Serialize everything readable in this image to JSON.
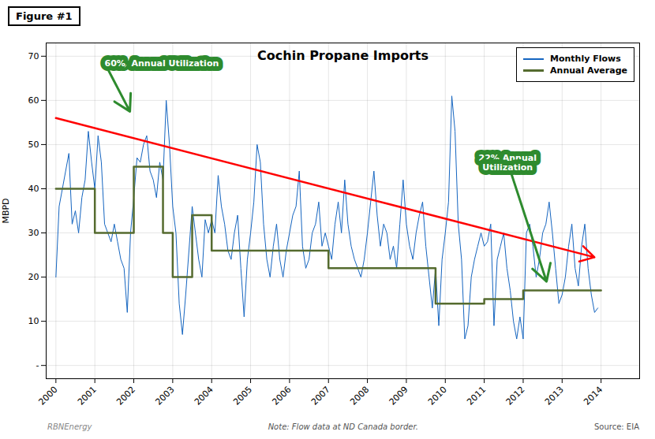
{
  "chart_data": {
    "type": "line",
    "title": "Cochin Propane Imports",
    "ylabel": "MBPD",
    "figure_label": "Figure #1",
    "note": "Note: Flow data at ND Canada border.",
    "source": "Source: EIA",
    "watermark": "RBNEnergy",
    "xlim": [
      1999.75,
      2014.99
    ],
    "xticks": [
      2000,
      2001,
      2002,
      2003,
      2004,
      2005,
      2006,
      2007,
      2008,
      2009,
      2010,
      2011,
      2012,
      2013,
      2014
    ],
    "ylim": [
      -3,
      73
    ],
    "yticks": [
      {
        "value": 0,
        "label": "-"
      },
      10,
      20,
      30,
      40,
      50,
      60,
      70
    ],
    "grid": true,
    "legend": "upper right",
    "series": [
      {
        "name": "Monthly Flows",
        "color": "#1565c0",
        "x": [
          2000.0,
          2000.083,
          2000.167,
          2000.25,
          2000.333,
          2000.417,
          2000.5,
          2000.583,
          2000.667,
          2000.75,
          2000.833,
          2000.917,
          2001.0,
          2001.083,
          2001.167,
          2001.25,
          2001.333,
          2001.417,
          2001.5,
          2001.583,
          2001.667,
          2001.75,
          2001.833,
          2001.917,
          2002.0,
          2002.083,
          2002.167,
          2002.25,
          2002.333,
          2002.417,
          2002.5,
          2002.583,
          2002.667,
          2002.75,
          2002.833,
          2002.917,
          2003.0,
          2003.083,
          2003.167,
          2003.25,
          2003.333,
          2003.417,
          2003.5,
          2003.583,
          2003.667,
          2003.75,
          2003.833,
          2003.917,
          2004.0,
          2004.083,
          2004.167,
          2004.25,
          2004.333,
          2004.417,
          2004.5,
          2004.583,
          2004.667,
          2004.75,
          2004.833,
          2004.917,
          2005.0,
          2005.083,
          2005.167,
          2005.25,
          2005.333,
          2005.417,
          2005.5,
          2005.583,
          2005.667,
          2005.75,
          2005.833,
          2005.917,
          2006.0,
          2006.083,
          2006.167,
          2006.25,
          2006.333,
          2006.417,
          2006.5,
          2006.583,
          2006.667,
          2006.75,
          2006.833,
          2006.917,
          2007.0,
          2007.083,
          2007.167,
          2007.25,
          2007.333,
          2007.417,
          2007.5,
          2007.583,
          2007.667,
          2007.75,
          2007.833,
          2007.917,
          2008.0,
          2008.083,
          2008.167,
          2008.25,
          2008.333,
          2008.417,
          2008.5,
          2008.583,
          2008.667,
          2008.75,
          2008.833,
          2008.917,
          2009.0,
          2009.083,
          2009.167,
          2009.25,
          2009.333,
          2009.417,
          2009.5,
          2009.583,
          2009.667,
          2009.75,
          2009.833,
          2009.917,
          2010.0,
          2010.083,
          2010.167,
          2010.25,
          2010.333,
          2010.417,
          2010.5,
          2010.583,
          2010.667,
          2010.75,
          2010.833,
          2010.917,
          2011.0,
          2011.083,
          2011.167,
          2011.25,
          2011.333,
          2011.417,
          2011.5,
          2011.583,
          2011.667,
          2011.75,
          2011.833,
          2011.917,
          2012.0,
          2012.083,
          2012.167,
          2012.25,
          2012.333,
          2012.417,
          2012.5,
          2012.583,
          2012.667,
          2012.75,
          2012.833,
          2012.917,
          2013.0,
          2013.083,
          2013.167,
          2013.25,
          2013.333,
          2013.417,
          2013.5,
          2013.583,
          2013.667,
          2013.75,
          2013.833,
          2013.917
        ],
        "values": [
          20,
          36,
          40,
          44,
          48,
          32,
          35,
          30,
          38,
          42,
          53,
          46,
          40,
          52,
          46,
          32,
          30,
          28,
          32,
          28,
          24,
          22,
          12,
          30,
          38,
          47,
          46,
          50,
          52,
          44,
          42,
          38,
          46,
          42,
          60,
          50,
          36,
          30,
          14,
          7,
          16,
          26,
          36,
          30,
          24,
          20,
          33,
          30,
          33,
          30,
          43,
          36,
          32,
          26,
          24,
          30,
          34,
          22,
          11,
          24,
          30,
          37,
          50,
          46,
          32,
          24,
          20,
          27,
          32,
          24,
          20,
          26,
          30,
          34,
          36,
          44,
          27,
          22,
          24,
          30,
          32,
          37,
          27,
          30,
          27,
          24,
          32,
          37,
          30,
          42,
          32,
          27,
          24,
          22,
          20,
          24,
          30,
          37,
          44,
          34,
          27,
          32,
          30,
          24,
          27,
          22,
          32,
          42,
          32,
          27,
          24,
          30,
          34,
          37,
          27,
          20,
          13,
          22,
          9,
          24,
          30,
          37,
          61,
          53,
          32,
          24,
          6,
          9,
          20,
          24,
          27,
          30,
          27,
          28,
          32,
          9,
          24,
          27,
          30,
          22,
          17,
          10,
          6,
          11,
          6,
          30,
          32,
          27,
          20,
          24,
          30,
          32,
          37,
          30,
          22,
          14,
          16,
          20,
          27,
          32,
          22,
          18,
          27,
          32,
          22,
          16,
          12,
          13
        ]
      },
      {
        "name": "Annual Average",
        "color": "#556B2F",
        "x": [
          2000.0,
          2001.0,
          2001.0,
          2002.0,
          2002.0,
          2002.75,
          2002.75,
          2003.0,
          2003.0,
          2003.5,
          2003.5,
          2004.0,
          2004.0,
          2006.0,
          2006.0,
          2007.0,
          2007.0,
          2009.75,
          2009.75,
          2011.0,
          2011.0,
          2012.0,
          2012.0,
          2014.0
        ],
        "values": [
          40.0,
          40.0,
          30.0,
          30.0,
          45.0,
          45.0,
          30.0,
          30.0,
          20.0,
          20.0,
          34.0,
          34.0,
          26.0,
          26.0,
          26.0,
          26.0,
          22.0,
          22.0,
          14.0,
          14.0,
          15.0,
          15.0,
          17.0,
          17.0
        ]
      }
    ],
    "trend": {
      "x": [
        2000.0,
        2013.83
      ],
      "values": [
        56.0,
        24.5
      ],
      "color": "#ff0000"
    },
    "annotations": [
      {
        "text": "60%  Annual Utilization",
        "x": 2001.9,
        "y": 57.5,
        "text_x": 2001.25,
        "text_y": 68.5,
        "color": "#2e8b2e"
      },
      {
        "text": "22% Annual\nUtilization",
        "x": 2012.6,
        "y": 19.0,
        "text_x": 2011.6,
        "text_y": 46.0,
        "color": "#2e8b2e"
      }
    ]
  }
}
